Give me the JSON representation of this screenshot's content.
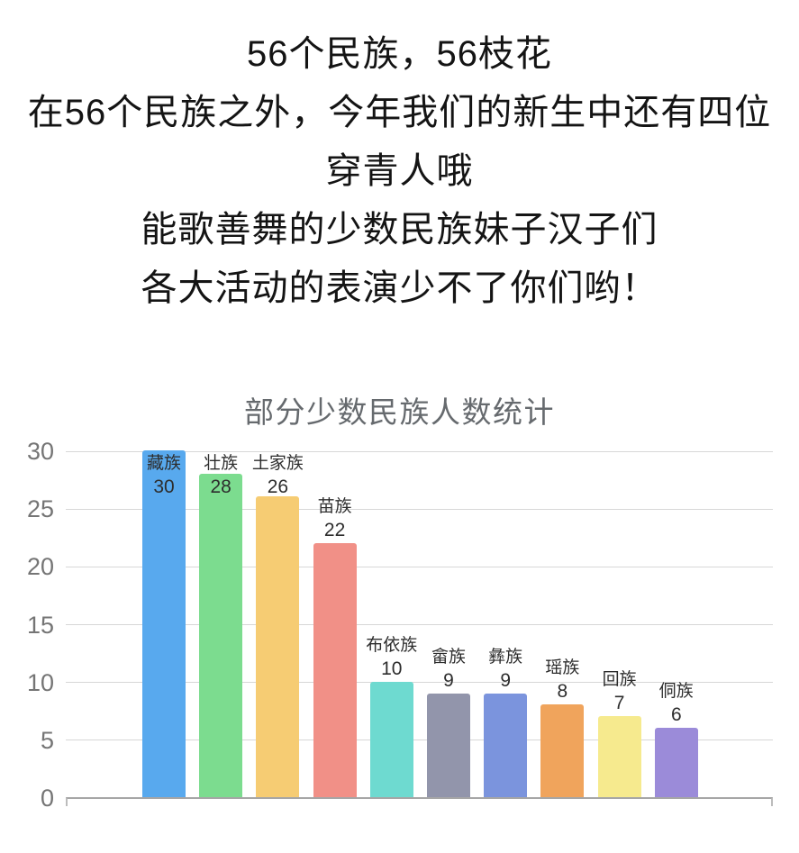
{
  "header": {
    "lines": [
      "56个民族，56枝花",
      "在56个民族之外，今年我们的新生中还有四位",
      "穿青人哦",
      "能歌善舞的少数民族妹子汉子们",
      "各大活动的表演少不了你们哟！"
    ]
  },
  "chart_data": {
    "type": "bar",
    "title": "部分少数民族人数统计",
    "categories": [
      "藏族",
      "壮族",
      "土家族",
      "苗族",
      "布依族",
      "畲族",
      "彝族",
      "瑶族",
      "回族",
      "侗族"
    ],
    "values": [
      30,
      28,
      26,
      22,
      10,
      9,
      9,
      8,
      7,
      6
    ],
    "bar_colors": [
      "#58a9ee",
      "#7cdc8f",
      "#f6cc73",
      "#f19087",
      "#6edad0",
      "#9295ab",
      "#7b94dd",
      "#f0a45c",
      "#f6ea8e",
      "#9b8bd9"
    ],
    "value_labels_visible": true,
    "xlabel": "",
    "ylabel": "",
    "ylim": [
      0,
      30
    ],
    "yticks": [
      0,
      5,
      10,
      15,
      20,
      25,
      30
    ],
    "grid": true,
    "legend_position": "none",
    "colors": {
      "grid_line": "#d7d7d7",
      "axis_line": "#a6a6a6",
      "tick_label": "#757575",
      "title_text": "#666a6e",
      "bar_label_text": "#2d2d2d"
    }
  }
}
